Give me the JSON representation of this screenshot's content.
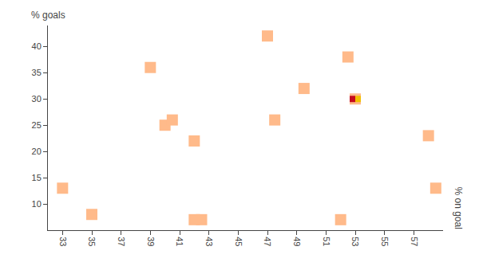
{
  "chart_data": {
    "type": "scatter",
    "xlabel": "% on goal",
    "ylabel": "% goals",
    "xlim": [
      32,
      59
    ],
    "ylim": [
      5,
      44
    ],
    "xticks": [
      33,
      35,
      37,
      39,
      41,
      43,
      45,
      47,
      49,
      51,
      53,
      55,
      57
    ],
    "yticks": [
      10,
      15,
      20,
      25,
      30,
      35,
      40
    ],
    "grid": false,
    "series": [
      {
        "x": [
          33,
          35,
          39,
          40,
          40.5,
          42,
          42,
          42.5,
          47,
          47.5,
          49.5,
          52,
          52.5,
          53,
          58,
          58.5
        ],
        "values": [
          13,
          8,
          36,
          25,
          26,
          22,
          7,
          7,
          42,
          26,
          32,
          7,
          38,
          30,
          23,
          13
        ],
        "color": "#FFBA8A",
        "marker": "square"
      },
      {
        "x": [
          53
        ],
        "values": [
          30
        ],
        "colors": [
          "#c60b1e",
          "#f1bf00"
        ],
        "marker": "flag"
      }
    ]
  }
}
